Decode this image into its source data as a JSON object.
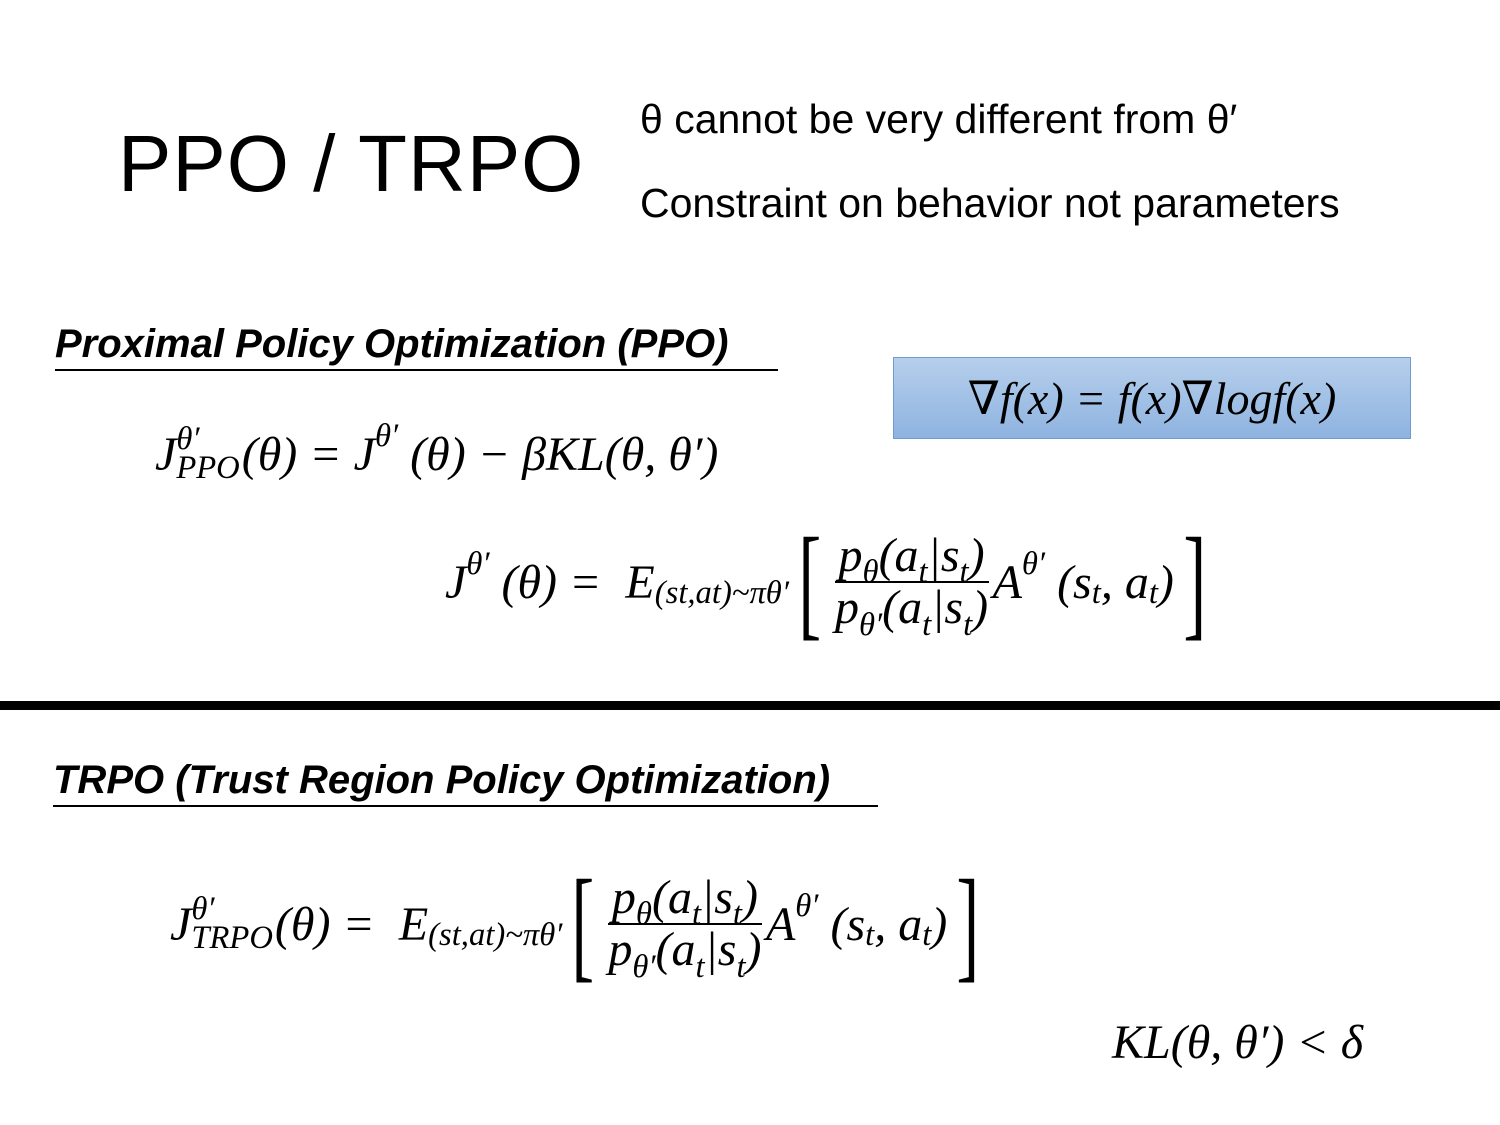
{
  "title": "PPO / TRPO",
  "notes": [
    "θ cannot be very different from θ′",
    "Constraint on behavior not parameters"
  ],
  "ppo_heading": "Proximal Policy Optimization (PPO)",
  "trpo_heading": "TRPO (Trust Region Policy Optimization)",
  "identity_box_color": "#9dbde5",
  "formulas": {
    "identity": [
      {
        "t": "∇f(x) = f(x)∇logf(x)"
      }
    ],
    "ppo": [
      {
        "t": "J"
      },
      {
        "stack": [
          "θ′",
          "PPO"
        ]
      },
      {
        "t": "(θ) = J"
      },
      {
        "t": "θ′",
        "s": "sup"
      },
      {
        "t": " (θ) − βKL(θ, θ′)"
      }
    ],
    "surrogate": [
      {
        "t": "J"
      },
      {
        "t": "θ′",
        "s": "sup"
      },
      {
        "t": " (θ) =  E"
      },
      {
        "t": "(s",
        "s": "sub"
      },
      {
        "t": "t",
        "s": "sub"
      },
      {
        "t": ",a",
        "s": "sub"
      },
      {
        "t": "t",
        "s": "sub"
      },
      {
        "t": ")~π",
        "s": "sub"
      },
      {
        "t": "θ′",
        "s": "sub"
      },
      {
        "big": "["
      },
      {
        "frac": {
          "num": [
            {
              "t": "p"
            },
            {
              "t": "θ",
              "s": "sub"
            },
            {
              "t": "(a"
            },
            {
              "t": "t",
              "s": "sub"
            },
            {
              "t": "|s"
            },
            {
              "t": "t",
              "s": "sub"
            },
            {
              "t": ")"
            }
          ],
          "den": [
            {
              "t": "p"
            },
            {
              "t": "θ′",
              "s": "sub"
            },
            {
              "t": "(a"
            },
            {
              "t": "t",
              "s": "sub"
            },
            {
              "t": "|s"
            },
            {
              "t": "t",
              "s": "sub"
            },
            {
              "t": ")"
            }
          ]
        }
      },
      {
        "t": "A"
      },
      {
        "t": "θ′",
        "s": "sup"
      },
      {
        "t": " (s"
      },
      {
        "t": "t",
        "s": "sub"
      },
      {
        "t": ", a"
      },
      {
        "t": "t",
        "s": "sub"
      },
      {
        "t": ")"
      },
      {
        "big": "]"
      }
    ],
    "trpo": [
      {
        "t": "J"
      },
      {
        "stack": [
          "θ′",
          "TRPO"
        ]
      },
      {
        "t": "(θ) =  E"
      },
      {
        "t": "(s",
        "s": "sub"
      },
      {
        "t": "t",
        "s": "sub"
      },
      {
        "t": ",a",
        "s": "sub"
      },
      {
        "t": "t",
        "s": "sub"
      },
      {
        "t": ")~π",
        "s": "sub"
      },
      {
        "t": "θ′",
        "s": "sub"
      },
      {
        "big": "["
      },
      {
        "frac": {
          "num": [
            {
              "t": "p"
            },
            {
              "t": "θ",
              "s": "sub"
            },
            {
              "t": "(a"
            },
            {
              "t": "t",
              "s": "sub"
            },
            {
              "t": "|s"
            },
            {
              "t": "t",
              "s": "sub"
            },
            {
              "t": ")"
            }
          ],
          "den": [
            {
              "t": "p"
            },
            {
              "t": "θ′",
              "s": "sub"
            },
            {
              "t": "(a"
            },
            {
              "t": "t",
              "s": "sub"
            },
            {
              "t": "|s"
            },
            {
              "t": "t",
              "s": "sub"
            },
            {
              "t": ")"
            }
          ]
        }
      },
      {
        "t": "A"
      },
      {
        "t": "θ′",
        "s": "sup"
      },
      {
        "t": " (s"
      },
      {
        "t": "t",
        "s": "sub"
      },
      {
        "t": ", a"
      },
      {
        "t": "t",
        "s": "sub"
      },
      {
        "t": ")"
      },
      {
        "big": "]"
      }
    ],
    "kl_constraint": [
      {
        "t": "KL(θ, θ′) < δ"
      }
    ]
  }
}
